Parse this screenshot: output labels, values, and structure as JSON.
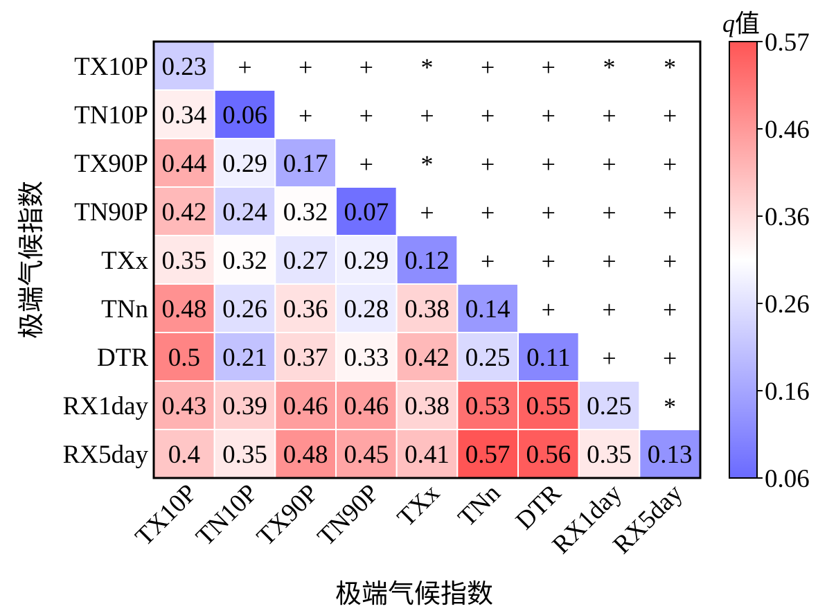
{
  "chart_data": {
    "type": "heatmap",
    "title": "",
    "xlabel": "极端气候指数",
    "ylabel": "极端气候指数",
    "categories": [
      "TX10P",
      "TN10P",
      "TX90P",
      "TN90P",
      "TXx",
      "TNn",
      "DTR",
      "RX1day",
      "RX5day"
    ],
    "lower_values": [
      [
        0.23
      ],
      [
        0.34,
        0.06
      ],
      [
        0.44,
        0.29,
        0.17
      ],
      [
        0.42,
        0.24,
        0.32,
        0.07
      ],
      [
        0.35,
        0.32,
        0.27,
        0.29,
        0.12
      ],
      [
        0.48,
        0.26,
        0.36,
        0.28,
        0.38,
        0.14
      ],
      [
        0.5,
        0.21,
        0.37,
        0.33,
        0.42,
        0.25,
        0.11
      ],
      [
        0.43,
        0.39,
        0.46,
        0.46,
        0.38,
        0.53,
        0.55,
        0.25
      ],
      [
        0.4,
        0.35,
        0.48,
        0.45,
        0.41,
        0.57,
        0.56,
        0.35,
        0.13
      ]
    ],
    "upper_symbols": [
      [
        "+",
        "+",
        "+",
        "*",
        "+",
        "+",
        "*",
        "*"
      ],
      [
        "+",
        "+",
        "+",
        "+",
        "+",
        "+",
        "+"
      ],
      [
        "+",
        "*",
        "+",
        "+",
        "+",
        "+"
      ],
      [
        "+",
        "+",
        "+",
        "+",
        "+"
      ],
      [
        "+",
        "+",
        "+",
        "+"
      ],
      [
        "+",
        "+",
        "+"
      ],
      [
        "+",
        "+"
      ],
      [
        "*"
      ]
    ],
    "colorbar": {
      "label_prefix": "q",
      "label_suffix": "值",
      "min": 0.06,
      "max": 0.57,
      "ticks": [
        "0.57",
        "0.46",
        "0.36",
        "0.26",
        "0.16",
        "0.06"
      ],
      "colors": {
        "low": "#6a6aff",
        "mid": "#ffffff",
        "high": "#ff5555"
      }
    }
  }
}
